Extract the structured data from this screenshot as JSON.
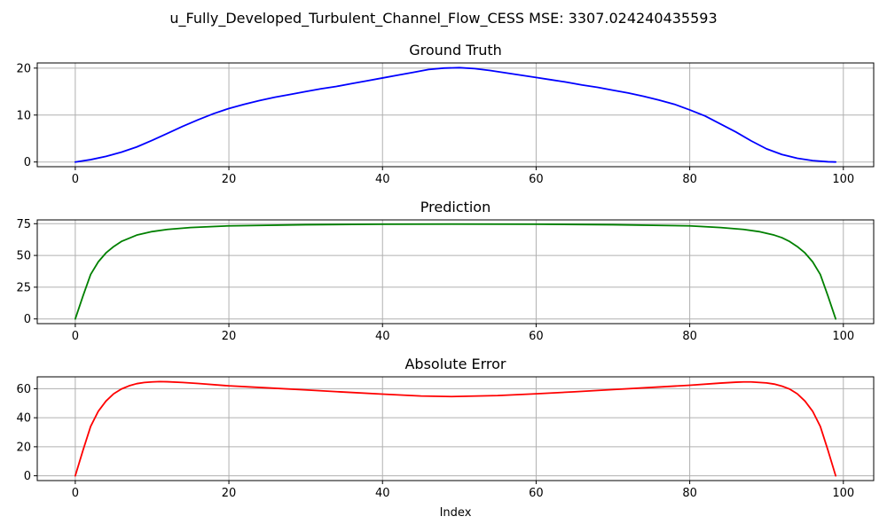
{
  "figure": {
    "suptitle": "u_Fully_Developed_Turbulent_Channel_Flow_CESS MSE: 3307.024240435593"
  },
  "chart_data": [
    {
      "type": "line",
      "title": "Ground Truth",
      "xlabel": "",
      "ylabel": "",
      "xlim": [
        -4.95,
        103.95
      ],
      "ylim": [
        -1.0,
        21.1
      ],
      "xticks": [
        0,
        20,
        40,
        60,
        80,
        100
      ],
      "yticks": [
        0,
        10,
        20
      ],
      "grid": true,
      "series": [
        {
          "color": "#0000ff",
          "x": [
            0,
            2,
            4,
            6,
            8,
            10,
            12,
            14,
            16,
            18,
            20,
            22,
            24,
            26,
            28,
            30,
            32,
            34,
            36,
            38,
            40,
            42,
            44,
            46,
            48,
            50,
            52,
            54,
            56,
            58,
            60,
            62,
            64,
            66,
            68,
            70,
            72,
            74,
            76,
            78,
            80,
            82,
            84,
            86,
            88,
            90,
            92,
            94,
            96,
            98,
            99
          ],
          "y": [
            0,
            0.5,
            1.2,
            2.1,
            3.2,
            4.6,
            6.1,
            7.6,
            9.0,
            10.3,
            11.4,
            12.3,
            13.1,
            13.8,
            14.4,
            15.0,
            15.6,
            16.1,
            16.7,
            17.3,
            17.9,
            18.5,
            19.1,
            19.7,
            20.0,
            20.1,
            19.9,
            19.5,
            19.0,
            18.5,
            18.0,
            17.5,
            17.0,
            16.4,
            15.9,
            15.3,
            14.7,
            14.0,
            13.2,
            12.3,
            11.1,
            9.8,
            8.1,
            6.4,
            4.5,
            2.8,
            1.6,
            0.8,
            0.3,
            0.05,
            0
          ]
        }
      ]
    },
    {
      "type": "line",
      "title": "Prediction",
      "xlabel": "",
      "ylabel": "",
      "xlim": [
        -4.95,
        103.95
      ],
      "ylim": [
        -3.7,
        78.0
      ],
      "xticks": [
        0,
        20,
        40,
        60,
        80,
        100
      ],
      "yticks": [
        0,
        25,
        50,
        75
      ],
      "grid": true,
      "series": [
        {
          "color": "#008000",
          "x": [
            0,
            1,
            2,
            3,
            4,
            5,
            6,
            8,
            10,
            12,
            15,
            20,
            30,
            40,
            49,
            60,
            70,
            80,
            84,
            87,
            89,
            91,
            92,
            93,
            94,
            95,
            96,
            97,
            98,
            99
          ],
          "y": [
            0,
            18,
            35,
            45,
            52,
            57,
            61,
            66,
            68.8,
            70.5,
            72,
            73.3,
            74.2,
            74.6,
            74.7,
            74.6,
            74.2,
            73.3,
            72,
            70.5,
            68.8,
            66,
            64,
            61,
            57,
            52,
            45,
            35,
            18,
            0
          ]
        }
      ]
    },
    {
      "type": "line",
      "title": "Absolute Error",
      "xlabel": "Index",
      "ylabel": "",
      "xlim": [
        -4.95,
        103.95
      ],
      "ylim": [
        -3.3,
        68.2
      ],
      "xticks": [
        0,
        20,
        40,
        60,
        80,
        100
      ],
      "yticks": [
        0,
        20,
        40,
        60
      ],
      "grid": true,
      "series": [
        {
          "color": "#ff0000",
          "x": [
            0,
            1,
            2,
            3,
            4,
            5,
            6,
            7,
            8,
            9,
            10,
            11,
            12,
            14,
            16,
            20,
            25,
            30,
            35,
            40,
            45,
            49,
            55,
            60,
            65,
            70,
            75,
            80,
            84,
            86,
            87,
            88,
            90,
            91,
            92,
            93,
            94,
            95,
            96,
            97,
            98,
            99
          ],
          "y": [
            0,
            17.5,
            34,
            44.5,
            51.5,
            56.5,
            59.8,
            62,
            63.5,
            64.3,
            64.7,
            64.9,
            64.8,
            64.3,
            63.6,
            62.0,
            60.6,
            59.2,
            57.7,
            56.3,
            55.0,
            54.6,
            55.3,
            56.5,
            57.9,
            59.4,
            60.9,
            62.4,
            63.9,
            64.5,
            64.7,
            64.7,
            64.0,
            63.2,
            61.8,
            59.8,
            56.5,
            51.5,
            44.5,
            34,
            17.5,
            0
          ]
        }
      ]
    }
  ]
}
